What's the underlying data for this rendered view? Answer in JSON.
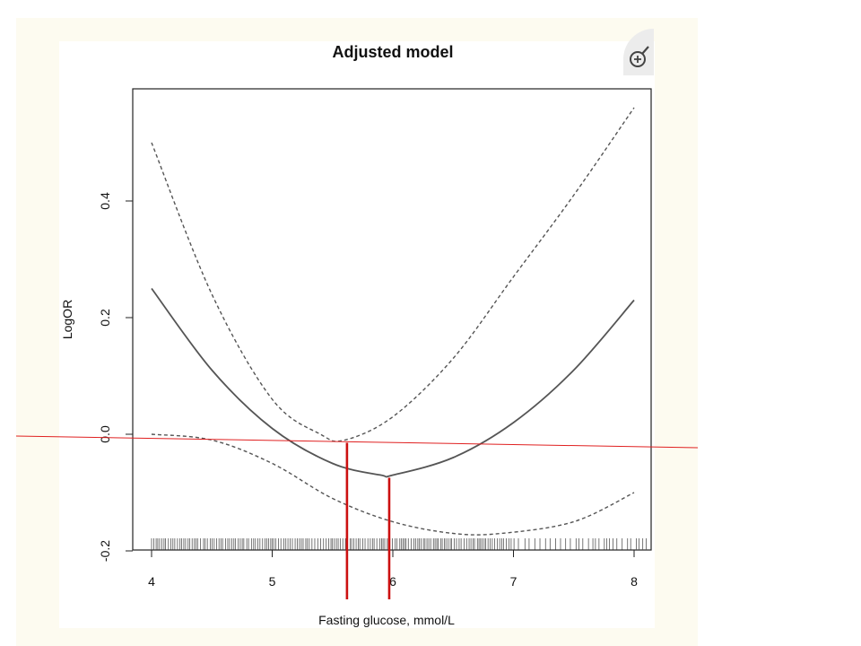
{
  "chart_data": {
    "type": "line",
    "title": "Adjusted model",
    "xlabel": "Fasting glucose, mmol/L",
    "ylabel": "LogOR",
    "xlim": [
      3.85,
      8.15
    ],
    "ylim": [
      -0.2,
      0.59
    ],
    "xticks": [
      4,
      5,
      6,
      7,
      8
    ],
    "xtick_labels": [
      "4",
      "5",
      "6",
      "7",
      "8"
    ],
    "yticks": [
      -0.2,
      0.0,
      0.2,
      0.4
    ],
    "ytick_labels": [
      "-0.2",
      "0.0",
      "0.2",
      "0.4"
    ],
    "grid": false,
    "legend": "none",
    "series": [
      {
        "style": "solid",
        "x": [
          4.0,
          4.5,
          5.0,
          5.5,
          5.9,
          6.0,
          6.5,
          7.0,
          7.5,
          8.0
        ],
        "y": [
          0.25,
          0.11,
          0.01,
          -0.05,
          -0.07,
          -0.07,
          -0.04,
          0.02,
          0.11,
          0.23
        ]
      },
      {
        "style": "dashed",
        "x": [
          4.0,
          4.5,
          5.0,
          5.4,
          5.6,
          6.0,
          6.5,
          7.0,
          7.5,
          8.0
        ],
        "y": [
          0.5,
          0.24,
          0.06,
          0.0,
          -0.01,
          0.03,
          0.13,
          0.27,
          0.41,
          0.56
        ]
      },
      {
        "style": "dashed",
        "x": [
          4.0,
          4.5,
          5.0,
          5.5,
          6.0,
          6.5,
          6.9,
          7.5,
          8.0
        ],
        "y": [
          0.0,
          -0.01,
          -0.05,
          -0.11,
          -0.15,
          -0.17,
          -0.17,
          -0.15,
          -0.1
        ]
      }
    ],
    "annotations": [
      {
        "type": "line",
        "color": "#e02020",
        "from": [
          3.0,
          0.0
        ],
        "to": [
          9.0,
          -0.02
        ]
      },
      {
        "type": "vline",
        "color": "#cc1010",
        "x": 5.62,
        "y_top": -0.01
      },
      {
        "type": "vline",
        "color": "#cc1010",
        "x": 5.97,
        "y_top": -0.07
      }
    ],
    "rug": {
      "x_min": 4.0,
      "x_max": 8.0,
      "color": "#555555"
    },
    "zoom_icon": "zoom-in-icon"
  },
  "colors": {
    "panel_background": "#fdfbf0",
    "axis": "#222222",
    "curve": "#555555",
    "annotation": "#e02020"
  }
}
